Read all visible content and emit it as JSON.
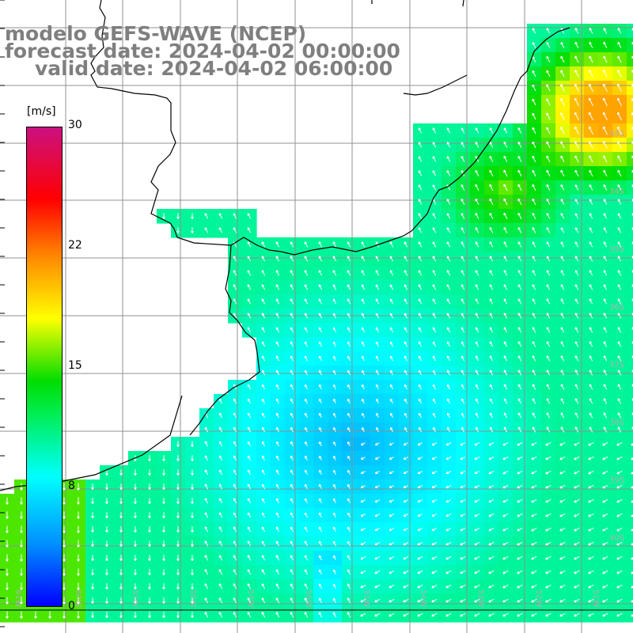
{
  "title": {
    "line1": "modelo GEFS-WAVE (NCEP)",
    "line2": "forecast date: 2024-04-02 00:00:00",
    "line3": "valid date: 2024-04-02 06:00:00"
  },
  "colorbar": {
    "unit": "[m/s]",
    "ticks": [
      "30",
      "22",
      "15",
      "8",
      "0"
    ],
    "colors": [
      "#0000ff",
      "#0090ff",
      "#00ffff",
      "#00ee55",
      "#00dd00",
      "#ffff00",
      "#ff8800",
      "#ff0000",
      "#cc1080"
    ]
  },
  "lat_labels": [
    "33S",
    "34S",
    "35S",
    "36S",
    "37S",
    "38S",
    "39S",
    "40S"
  ],
  "lon_labels": [
    "61W",
    "60W",
    "59W",
    "58W",
    "57W",
    "56W",
    "55W",
    "54W",
    "53W",
    "52W",
    "51W"
  ],
  "colors": {
    "grid": "#888888",
    "coast": "#000000",
    "title": "#7f7f7f",
    "arrow": "#ffffff"
  }
}
